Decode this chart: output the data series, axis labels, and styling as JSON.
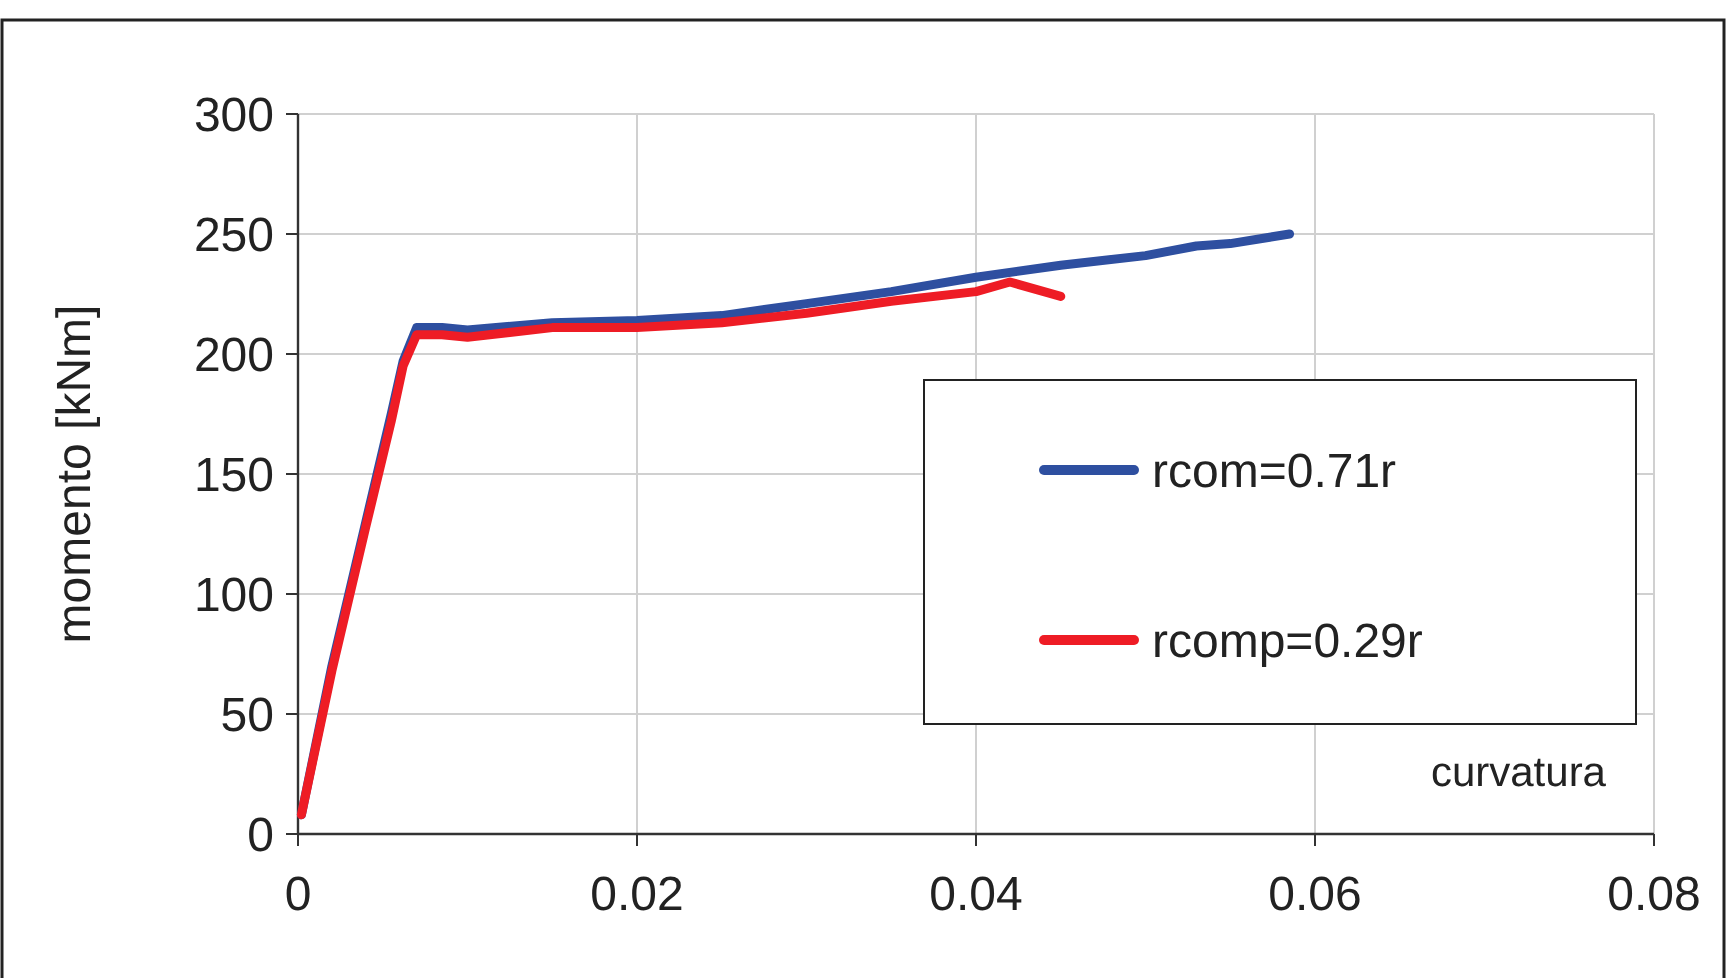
{
  "chart_data": {
    "type": "line",
    "xlabel": "curvatura",
    "ylabel": "momento [kNm]",
    "xlim": [
      0,
      0.08
    ],
    "xticks": [
      0,
      0.02,
      0.04,
      0.06,
      0.08
    ],
    "ylim": [
      0,
      300
    ],
    "yticks": [
      0,
      50,
      100,
      150,
      200,
      250,
      300
    ],
    "grid": true,
    "legend": "right",
    "marker": "none",
    "line_style": "solid",
    "series": [
      {
        "name": "rcom=0.71r",
        "color": "#2e4fa0",
        "x": [
          0.0002,
          0.002,
          0.004,
          0.0055,
          0.0062,
          0.007,
          0.0085,
          0.01,
          0.015,
          0.02,
          0.025,
          0.03,
          0.035,
          0.04,
          0.045,
          0.05,
          0.053,
          0.055,
          0.0585
        ],
        "values": [
          8,
          70,
          130,
          175,
          197,
          211,
          211,
          210,
          213,
          214,
          216,
          221,
          226,
          232,
          237,
          241,
          245,
          246,
          250
        ]
      },
      {
        "name": "rcomp=0.29r",
        "color": "#ee1c25",
        "x": [
          0.0002,
          0.002,
          0.004,
          0.0055,
          0.0062,
          0.007,
          0.0085,
          0.01,
          0.015,
          0.02,
          0.025,
          0.03,
          0.035,
          0.04,
          0.042,
          0.045
        ],
        "values": [
          8,
          68,
          128,
          172,
          195,
          208,
          208,
          207,
          211,
          211,
          213,
          217,
          222,
          226,
          230,
          224
        ]
      }
    ]
  }
}
